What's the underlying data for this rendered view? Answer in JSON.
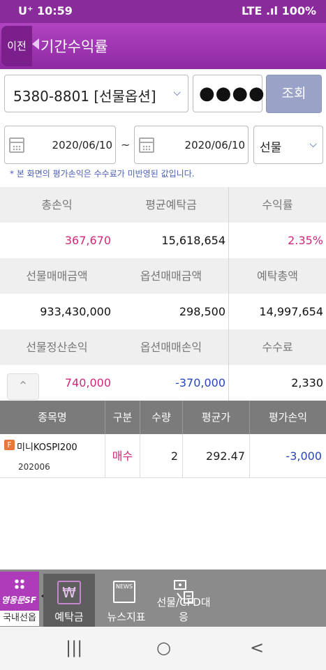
{
  "status_bar": {
    "left": "U⁺ 10:59",
    "right": "LTE .ıl 100%"
  },
  "header": {
    "back_label": "이전",
    "title": "기간수익률"
  },
  "query": {
    "account": "5380-8801 [선물옵션]",
    "password": "●●●●",
    "search_button": "조회"
  },
  "dates": {
    "from": "2020/06/10",
    "separator": "~",
    "to": "2020/06/10",
    "product_type": "선물"
  },
  "notice": "* 본 화면의 평가손익은 수수료가 미반영된 값입니다.",
  "summary": {
    "row1": {
      "headers": [
        "총손익",
        "평균예탁금",
        "수익률"
      ],
      "values": [
        "367,670",
        "15,618,654",
        "2.35%"
      ]
    },
    "row2": {
      "headers": [
        "선물매매금액",
        "옵션매매금액",
        "예탁총액"
      ],
      "values": [
        "933,430,000",
        "298,500",
        "14,997,654"
      ]
    },
    "row3": {
      "headers": [
        "선물정산손익",
        "옵션매매손익",
        "수수료"
      ],
      "values": [
        "740,000",
        "-370,000",
        "2,330"
      ]
    }
  },
  "table": {
    "columns": [
      "종목명",
      "구분",
      "수량",
      "평균가",
      "평가손익"
    ],
    "rows": [
      {
        "badge": "F",
        "name": "미니KOSPI200",
        "code": "202006",
        "type": "매수",
        "qty": "2",
        "avg_price": "292.47",
        "pnl": "-3,000"
      }
    ]
  },
  "bottom_nav": {
    "menu_brand": "영웅문SF",
    "menu_sub": "국내선옵",
    "items": [
      {
        "label": "예탁금",
        "icon": "won-icon",
        "active": true
      },
      {
        "label": "뉴스지표",
        "icon": "news-icon",
        "active": false
      },
      {
        "label": "선물/CFD대응",
        "icon": "cfd-icon",
        "active": false
      }
    ],
    "news_icon_text": "NEWS"
  },
  "system_nav": {
    "recent": "|||",
    "home": "○",
    "back": "<"
  },
  "colors": {
    "accent": "#9a33ad",
    "positive": "#d1277a",
    "negative": "#2846b5"
  }
}
